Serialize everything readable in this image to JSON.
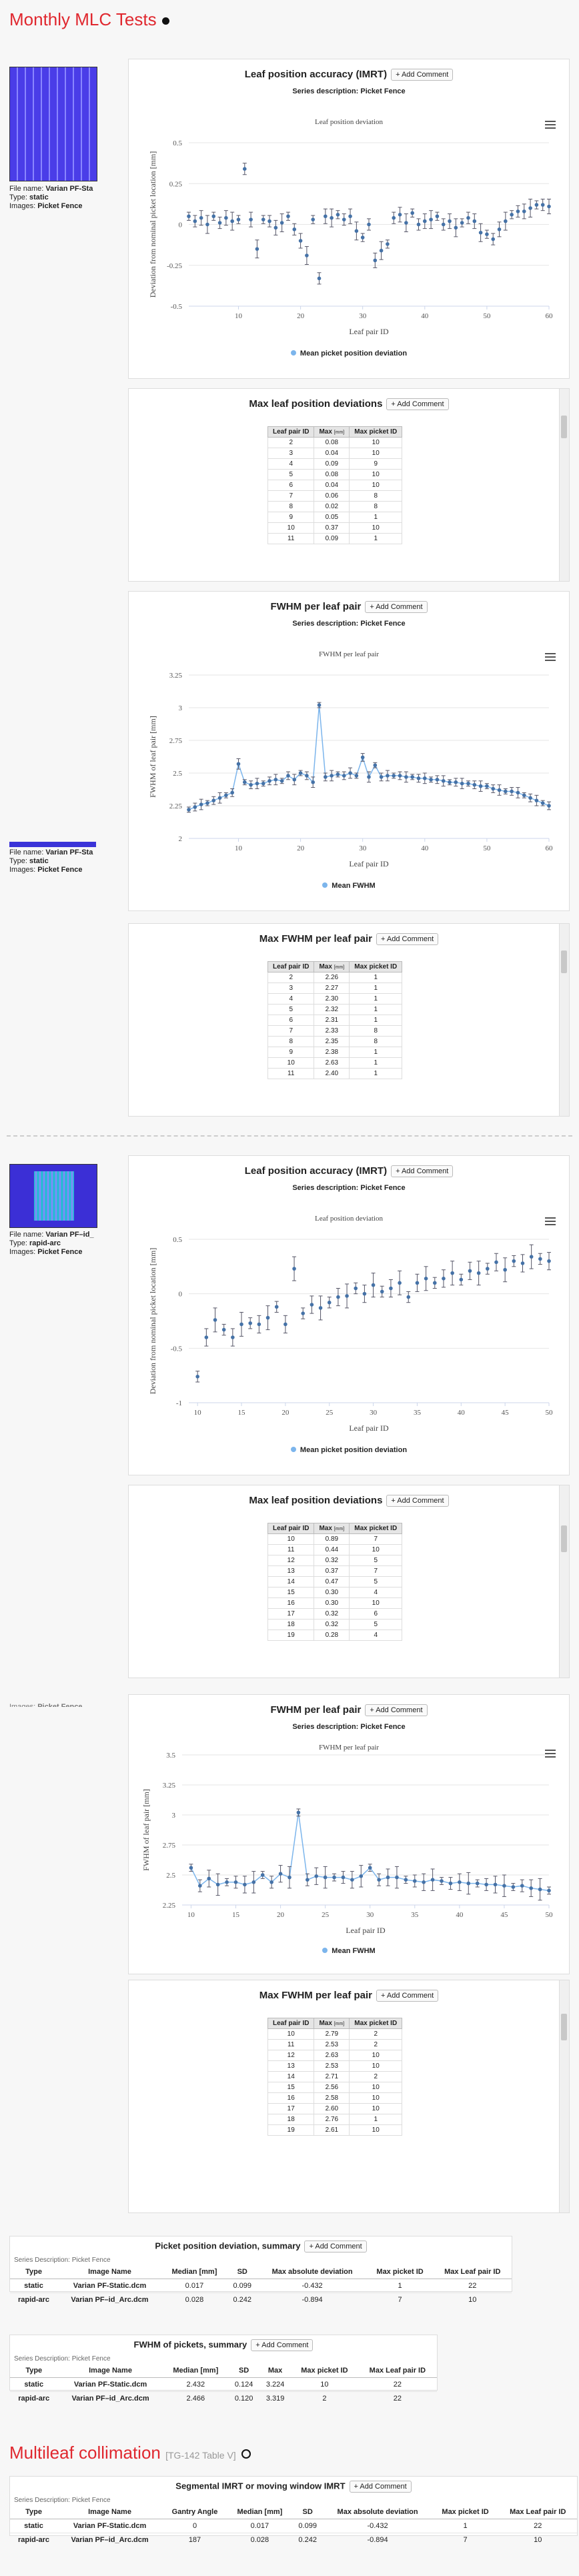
{
  "page": {
    "title": "Monthly MLC Tests",
    "section2_title": "Multileaf collimation",
    "section2_ref": "[TG-142 Table V]"
  },
  "common": {
    "add_comment": "+ Add Comment",
    "series_desc": "Series description: Picket Fence",
    "col_leaf": "Leaf pair ID",
    "col_max": "Max",
    "col_unit": "[mm]",
    "col_picket": "Max picket ID",
    "legend_mean_pos": "Mean picket position deviation",
    "legend_fwhm": "Mean FWHM"
  },
  "blocks": [
    {
      "meta": {
        "file_label": "File name:",
        "file": "Varian PF-Sta",
        "type_label": "Type:",
        "type": "static",
        "images_label": "Images:",
        "images": "Picket Fence"
      },
      "acc": {
        "title": "Leaf position accuracy (IMRT)",
        "chart_title": "Leaf position deviation"
      },
      "maxdev": {
        "title": "Max leaf position deviations",
        "rows": [
          [
            "2",
            "0.08",
            "10"
          ],
          [
            "3",
            "0.04",
            "10"
          ],
          [
            "4",
            "0.09",
            "9"
          ],
          [
            "5",
            "0.08",
            "10"
          ],
          [
            "6",
            "0.04",
            "10"
          ],
          [
            "7",
            "0.06",
            "8"
          ],
          [
            "8",
            "0.02",
            "8"
          ],
          [
            "9",
            "0.05",
            "1"
          ],
          [
            "10",
            "0.37",
            "10"
          ],
          [
            "11",
            "0.09",
            "1"
          ]
        ]
      },
      "fwhm": {
        "title": "FWHM per leaf pair",
        "chart_title": "FWHM per leaf pair"
      },
      "maxfwhm": {
        "title": "Max FWHM per leaf pair",
        "rows": [
          [
            "2",
            "2.26",
            "1"
          ],
          [
            "3",
            "2.27",
            "1"
          ],
          [
            "4",
            "2.30",
            "1"
          ],
          [
            "5",
            "2.32",
            "1"
          ],
          [
            "6",
            "2.31",
            "1"
          ],
          [
            "7",
            "2.33",
            "8"
          ],
          [
            "8",
            "2.35",
            "8"
          ],
          [
            "9",
            "2.38",
            "1"
          ],
          [
            "10",
            "2.63",
            "1"
          ],
          [
            "11",
            "2.40",
            "1"
          ]
        ]
      }
    },
    {
      "meta": {
        "file_label": "File name:",
        "file": "Varian PF–id_",
        "type_label": "Type:",
        "type": "rapid-arc",
        "images_label": "Images:",
        "images": "Picket Fence"
      },
      "acc": {
        "title": "Leaf position accuracy (IMRT)",
        "chart_title": "Leaf position deviation"
      },
      "maxdev": {
        "title": "Max leaf position deviations",
        "rows": [
          [
            "10",
            "0.89",
            "7"
          ],
          [
            "11",
            "0.44",
            "10"
          ],
          [
            "12",
            "0.32",
            "5"
          ],
          [
            "13",
            "0.37",
            "7"
          ],
          [
            "14",
            "0.47",
            "5"
          ],
          [
            "15",
            "0.30",
            "4"
          ],
          [
            "16",
            "0.30",
            "10"
          ],
          [
            "17",
            "0.32",
            "6"
          ],
          [
            "18",
            "0.32",
            "5"
          ],
          [
            "19",
            "0.28",
            "4"
          ]
        ]
      },
      "fwhm": {
        "title": "FWHM per leaf pair",
        "chart_title": "FWHM per leaf pair"
      },
      "maxfwhm": {
        "title": "Max FWHM per leaf pair",
        "rows": [
          [
            "10",
            "2.79",
            "2"
          ],
          [
            "11",
            "2.53",
            "2"
          ],
          [
            "12",
            "2.63",
            "10"
          ],
          [
            "13",
            "2.53",
            "10"
          ],
          [
            "14",
            "2.71",
            "2"
          ],
          [
            "15",
            "2.56",
            "10"
          ],
          [
            "16",
            "2.58",
            "10"
          ],
          [
            "17",
            "2.60",
            "10"
          ],
          [
            "18",
            "2.76",
            "1"
          ],
          [
            "19",
            "2.61",
            "10"
          ]
        ]
      }
    }
  ],
  "summary_pos": {
    "title": "Picket position deviation, summary",
    "desc": "Series Description: Picket Fence",
    "headers": [
      "Type",
      "Image Name",
      "Median [mm]",
      "SD",
      "Max absolute deviation",
      "Max picket ID",
      "Max Leaf pair ID"
    ],
    "rows": [
      [
        "static",
        "Varian PF-Static.dcm",
        "0.017",
        "0.099",
        "-0.432",
        "1",
        "22"
      ],
      [
        "rapid-arc",
        "Varian PF–id_Arc.dcm",
        "0.028",
        "0.242",
        "-0.894",
        "7",
        "10"
      ]
    ]
  },
  "summary_fwhm": {
    "title": "FWHM of pickets, summary",
    "desc": "Series Description: Picket Fence",
    "headers": [
      "Type",
      "Image Name",
      "Median [mm]",
      "SD",
      "Max",
      "Max picket ID",
      "Max Leaf pair ID"
    ],
    "rows": [
      [
        "static",
        "Varian PF-Static.dcm",
        "2.432",
        "0.124",
        "3.224",
        "10",
        "22"
      ],
      [
        "rapid-arc",
        "Varian PF–id_Arc.dcm",
        "2.466",
        "0.120",
        "3.319",
        "2",
        "22"
      ]
    ]
  },
  "segmental": {
    "title": "Segmental IMRT or moving window IMRT",
    "desc": "Series Description: Picket Fence",
    "headers": [
      "Type",
      "Image Name",
      "Gantry Angle",
      "Median [mm]",
      "SD",
      "Max absolute deviation",
      "Max picket ID",
      "Max Leaf pair ID"
    ],
    "rows": [
      [
        "static",
        "Varian PF-Static.dcm",
        "0",
        "0.017",
        "0.099",
        "-0.432",
        "1",
        "22"
      ],
      [
        "rapid-arc",
        "Varian PF–id_Arc.dcm",
        "187",
        "0.028",
        "0.242",
        "-0.894",
        "7",
        "10"
      ]
    ]
  },
  "chart_data": [
    {
      "type": "scatter",
      "title": "Leaf position deviation",
      "xlabel": "Leaf pair ID",
      "ylabel": "Deviation from nominal picket location [mm]",
      "series": [
        {
          "name": "Mean picket position deviation"
        }
      ],
      "x": [
        2,
        3,
        4,
        5,
        6,
        7,
        8,
        9,
        10,
        11,
        12,
        13,
        14,
        15,
        16,
        17,
        18,
        19,
        20,
        21,
        22,
        23,
        24,
        25,
        26,
        27,
        28,
        29,
        30,
        31,
        32,
        33,
        34,
        35,
        36,
        37,
        38,
        39,
        40,
        41,
        42,
        43,
        44,
        45,
        46,
        47,
        48,
        49,
        50,
        51,
        52,
        53,
        54,
        55,
        56,
        57,
        58,
        59,
        60
      ],
      "values": [
        0.05,
        0.02,
        0.04,
        0.0,
        0.05,
        0.01,
        0.04,
        0.02,
        0.03,
        0.34,
        0.03,
        -0.15,
        0.03,
        0.02,
        -0.02,
        0.01,
        0.05,
        -0.03,
        -0.1,
        -0.19,
        0.03,
        -0.33,
        0.05,
        0.04,
        0.06,
        0.03,
        0.05,
        -0.04,
        -0.08,
        0.0,
        -0.22,
        -0.16,
        -0.12,
        0.04,
        0.06,
        0.01,
        0.07,
        0.0,
        0.02,
        0.03,
        0.05,
        0.0,
        0.02,
        -0.02,
        0.01,
        0.04,
        0.02,
        -0.05,
        -0.06,
        -0.09,
        -0.03,
        0.02,
        0.06,
        0.08,
        0.08,
        0.1,
        0.12,
        0.12,
        0.11
      ],
      "xlim": [
        2,
        60
      ],
      "ylim": [
        -0.5,
        0.5
      ],
      "yticks": [
        0.5,
        0.25,
        0,
        -0.25,
        -0.5
      ],
      "xticks": [
        10,
        20,
        30,
        40,
        50,
        60
      ]
    },
    {
      "type": "line",
      "title": "FWHM per leaf pair",
      "xlabel": "Leaf pair ID",
      "ylabel": "FWHM of leaf pair [mm]",
      "series": [
        {
          "name": "Mean FWHM"
        }
      ],
      "x": [
        2,
        3,
        4,
        5,
        6,
        7,
        8,
        9,
        10,
        11,
        12,
        13,
        14,
        15,
        16,
        17,
        18,
        19,
        20,
        21,
        22,
        23,
        24,
        25,
        26,
        27,
        28,
        29,
        30,
        31,
        32,
        33,
        34,
        35,
        36,
        37,
        38,
        39,
        40,
        41,
        42,
        43,
        44,
        45,
        46,
        47,
        48,
        49,
        50,
        51,
        52,
        53,
        54,
        55,
        56,
        57,
        58,
        59,
        60
      ],
      "values": [
        2.22,
        2.24,
        2.26,
        2.27,
        2.29,
        2.31,
        2.33,
        2.35,
        2.57,
        2.43,
        2.41,
        2.42,
        2.42,
        2.44,
        2.45,
        2.44,
        2.48,
        2.45,
        2.5,
        2.48,
        2.43,
        3.02,
        2.47,
        2.48,
        2.49,
        2.48,
        2.5,
        2.48,
        2.62,
        2.47,
        2.56,
        2.47,
        2.48,
        2.48,
        2.48,
        2.47,
        2.47,
        2.46,
        2.46,
        2.45,
        2.45,
        2.44,
        2.43,
        2.43,
        2.42,
        2.42,
        2.41,
        2.4,
        2.4,
        2.38,
        2.37,
        2.36,
        2.36,
        2.35,
        2.33,
        2.31,
        2.29,
        2.27,
        2.25
      ],
      "xlim": [
        2,
        60
      ],
      "ylim": [
        2,
        3.25
      ],
      "yticks": [
        3.25,
        3,
        2.75,
        2.5,
        2.25,
        2
      ],
      "xticks": [
        10,
        20,
        30,
        40,
        50,
        60
      ]
    },
    {
      "type": "scatter",
      "title": "Leaf position deviation",
      "xlabel": "Leaf pair ID",
      "ylabel": "Deviation from nominal picket location [mm]",
      "series": [
        {
          "name": "Mean picket position deviation"
        }
      ],
      "x": [
        10,
        11,
        12,
        13,
        14,
        15,
        16,
        17,
        18,
        19,
        20,
        21,
        22,
        23,
        24,
        25,
        26,
        27,
        28,
        29,
        30,
        31,
        32,
        33,
        34,
        35,
        36,
        37,
        38,
        39,
        40,
        41,
        42,
        43,
        44,
        45,
        46,
        47,
        48,
        49,
        50
      ],
      "values": [
        -0.76,
        -0.4,
        -0.24,
        -0.33,
        -0.4,
        -0.28,
        -0.27,
        -0.28,
        -0.22,
        -0.12,
        -0.28,
        0.23,
        -0.18,
        -0.1,
        -0.13,
        -0.08,
        -0.03,
        -0.02,
        0.05,
        0.0,
        0.08,
        0.02,
        0.05,
        0.1,
        -0.03,
        0.1,
        0.14,
        0.1,
        0.14,
        0.19,
        0.13,
        0.21,
        0.19,
        0.23,
        0.29,
        0.22,
        0.3,
        0.28,
        0.34,
        0.32,
        0.3
      ],
      "xlim": [
        9,
        50
      ],
      "ylim": [
        -1,
        0.5
      ],
      "yticks": [
        0.5,
        0,
        -0.5,
        -1
      ],
      "xticks": [
        10,
        15,
        20,
        25,
        30,
        35,
        40,
        45,
        50
      ]
    },
    {
      "type": "line",
      "title": "FWHM per leaf pair",
      "xlabel": "Leaf pair ID",
      "ylabel": "FWHM of leaf pair [mm]",
      "series": [
        {
          "name": "Mean FWHM"
        }
      ],
      "x": [
        10,
        11,
        12,
        13,
        14,
        15,
        16,
        17,
        18,
        19,
        20,
        21,
        22,
        23,
        24,
        25,
        26,
        27,
        28,
        29,
        30,
        31,
        32,
        33,
        34,
        35,
        36,
        37,
        38,
        39,
        40,
        41,
        42,
        43,
        44,
        45,
        46,
        47,
        48,
        49,
        50
      ],
      "values": [
        2.56,
        2.41,
        2.47,
        2.42,
        2.44,
        2.44,
        2.42,
        2.44,
        2.5,
        2.44,
        2.51,
        2.48,
        3.02,
        2.46,
        2.49,
        2.48,
        2.48,
        2.48,
        2.46,
        2.49,
        2.56,
        2.46,
        2.48,
        2.48,
        2.46,
        2.45,
        2.44,
        2.46,
        2.45,
        2.43,
        2.44,
        2.43,
        2.43,
        2.42,
        2.42,
        2.41,
        2.4,
        2.41,
        2.39,
        2.38,
        2.37
      ],
      "xlim": [
        9,
        50
      ],
      "ylim": [
        2.25,
        3.5
      ],
      "yticks": [
        3.5,
        3.25,
        3,
        2.75,
        2.5,
        2.25
      ],
      "xticks": [
        10,
        15,
        20,
        25,
        30,
        35,
        40,
        45,
        50
      ]
    }
  ]
}
